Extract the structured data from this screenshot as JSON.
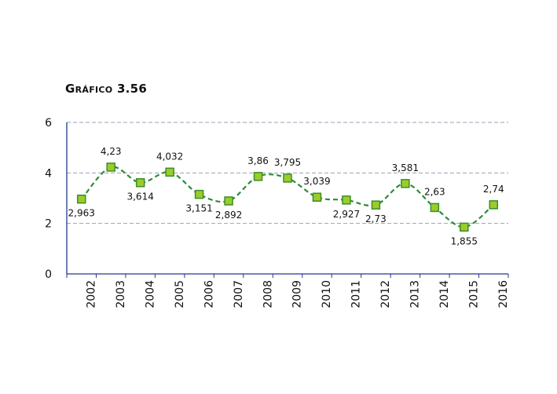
{
  "chart_data": {
    "type": "line",
    "title": "Gráfico 3.56",
    "categories": [
      "2002",
      "2003",
      "2004",
      "2005",
      "2006",
      "2007",
      "2008",
      "2009",
      "2010",
      "2011",
      "2012",
      "2013",
      "2014",
      "2015",
      "2016"
    ],
    "values": [
      2.963,
      4.23,
      3.614,
      4.032,
      3.151,
      2.892,
      3.86,
      3.795,
      3.039,
      2.927,
      2.73,
      3.581,
      2.63,
      1.855,
      2.74
    ],
    "value_labels": [
      "2,963",
      "4,23",
      "3,614",
      "4,032",
      "3,151",
      "2,892",
      "3,86",
      "3,795",
      "3,039",
      "2,927",
      "2,73",
      "3,581",
      "2,63",
      "1,855",
      "2,74"
    ],
    "label_positions": [
      "below",
      "above",
      "below",
      "above",
      "below",
      "below",
      "above",
      "above",
      "above",
      "below",
      "below",
      "above",
      "above",
      "below",
      "above"
    ],
    "y_ticks": [
      "0",
      "2",
      "4",
      "6"
    ],
    "ylim": [
      0,
      6
    ],
    "grid": true,
    "line_color": "#2e8b3a",
    "marker_fill": "#9ccc2a",
    "marker_stroke": "#3a8f2a",
    "axis_color": "#1f3a8a",
    "grid_color": "#9aa0b8"
  }
}
